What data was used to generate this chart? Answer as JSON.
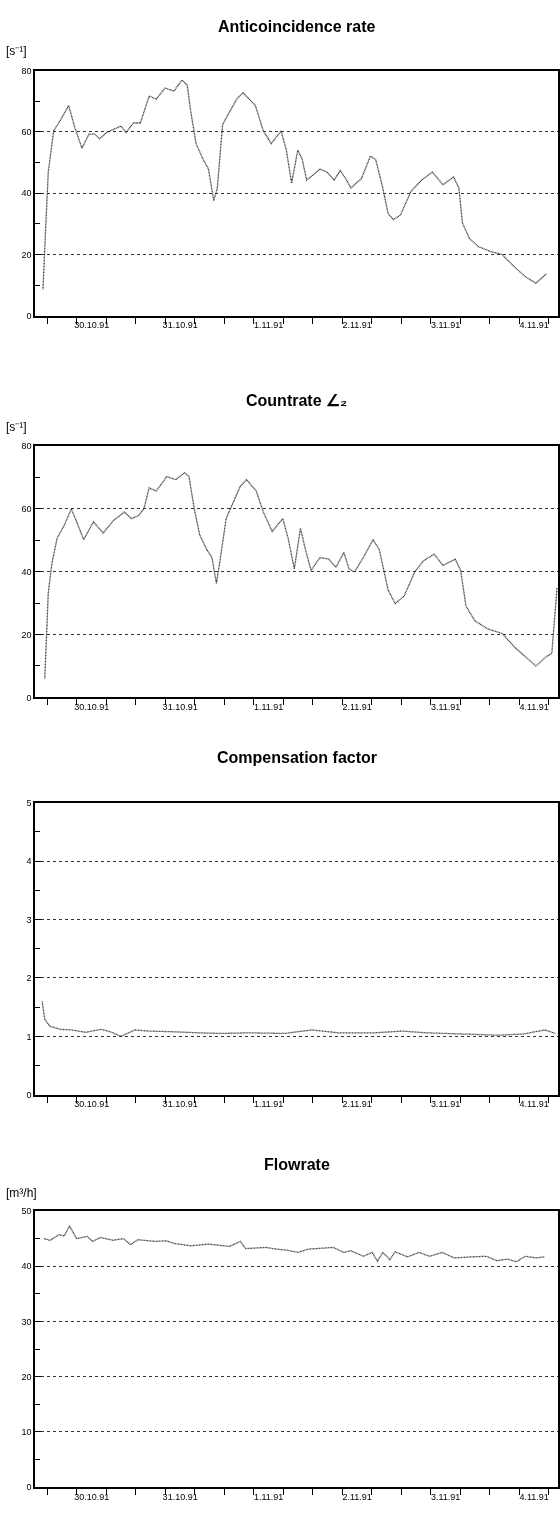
{
  "chart_data": [
    {
      "type": "line",
      "title": "Anticoincidence rate",
      "ylabel": "[s⁻¹]",
      "color": "#404040",
      "line_style": "dotted",
      "marker": "none",
      "grid": "y",
      "x": [
        "1991-10-29T22:48",
        "1991-10-29T23:31",
        "1991-10-30T00:14",
        "1991-10-30T01:41",
        "1991-10-30T03:36",
        "1991-10-30T05:46",
        "1991-10-30T07:26",
        "1991-10-30T09:22",
        "1991-10-30T11:17",
        "1991-10-30T12:43",
        "1991-10-30T14:10",
        "1991-10-30T16:05",
        "1991-10-30T19:55",
        "1991-10-30T21:22",
        "1991-10-30T23:17",
        "1991-10-31T01:12",
        "1991-10-31T03:36",
        "1991-10-31T05:31",
        "1991-10-31T07:55",
        "1991-10-31T10:19",
        "1991-10-31T12:29",
        "1991-10-31T13:55",
        "1991-10-31T14:53",
        "1991-10-31T16:19",
        "1991-10-31T18:14",
        "1991-10-31T19:41",
        "1991-10-31T21:07",
        "1991-10-31T22:05",
        "1991-10-31T23:31",
        "1991-11-01T01:26",
        "1991-11-01T03:22",
        "1991-11-01T05:02",
        "1991-11-01T06:43",
        "1991-11-01T08:24",
        "1991-11-01T10:34",
        "1991-11-01T12:43",
        "1991-11-01T15:22",
        "1991-11-01T16:48",
        "1991-11-01T18:14",
        "1991-11-01T19:55",
        "1991-11-01T21:07",
        "1991-11-01T22:19",
        "1991-11-02T00:00",
        "1991-11-02T01:55",
        "1991-11-02T03:50",
        "1991-11-02T05:46",
        "1991-11-02T07:26",
        "1991-11-02T08:53",
        "1991-11-02T10:19",
        "1991-11-02T13:12",
        "1991-11-02T15:36",
        "1991-11-02T17:02",
        "1991-11-02T18:58",
        "1991-11-02T20:24",
        "1991-11-02T21:50",
        "1991-11-02T23:46",
        "1991-11-03T02:38",
        "1991-11-03T05:31",
        "1991-11-03T08:24",
        "1991-11-03T11:17",
        "1991-11-03T14:10",
        "1991-11-03T15:36",
        "1991-11-03T16:34",
        "1991-11-03T18:29",
        "1991-11-03T20:53",
        "1991-11-04T00:14",
        "1991-11-04T03:22",
        "1991-11-04T06:43",
        "1991-11-04T09:36",
        "1991-11-04T12:29",
        "1991-11-04T15:22"
      ],
      "values": [
        8.6,
        28.3,
        46.9,
        60.3,
        64.0,
        68.6,
        61.4,
        54.7,
        59.3,
        59.3,
        57.8,
        59.8,
        61.9,
        59.8,
        62.9,
        62.9,
        71.7,
        70.7,
        74.3,
        73.3,
        76.9,
        75.3,
        66.6,
        56.2,
        51.0,
        47.9,
        37.6,
        41.7,
        62.4,
        66.6,
        70.7,
        72.8,
        70.7,
        68.6,
        60.3,
        56.2,
        60.3,
        54.1,
        43.3,
        54.1,
        51.0,
        44.3,
        45.9,
        47.9,
        46.9,
        44.3,
        47.4,
        44.8,
        41.7,
        44.8,
        52.1,
        51.0,
        41.7,
        33.4,
        31.4,
        32.9,
        40.7,
        44.3,
        46.9,
        42.8,
        45.3,
        41.7,
        30.3,
        25.2,
        22.6,
        21.0,
        20.0,
        15.9,
        12.8,
        10.7,
        13.8
      ],
      "xlim": [
        "1991-10-29T20:38",
        "1991-11-04T18:29"
      ],
      "xticks": [
        {
          "value": "1991-10-30T00:00",
          "label": null
        },
        {
          "value": "1991-10-30T08:00",
          "label": null
        },
        {
          "value": "1991-10-30T16:00",
          "label": null
        },
        {
          "value": "1991-10-31T00:00",
          "label": null
        },
        {
          "value": "1991-10-31T08:00",
          "label": null
        },
        {
          "value": "1991-10-31T16:00",
          "label": null
        },
        {
          "value": "1991-11-01T00:00",
          "label": null
        },
        {
          "value": "1991-11-01T08:00",
          "label": null
        },
        {
          "value": "1991-11-01T16:00",
          "label": null
        },
        {
          "value": "1991-11-02T00:00",
          "label": null
        },
        {
          "value": "1991-11-02T08:00",
          "label": null
        },
        {
          "value": "1991-11-02T16:00",
          "label": null
        },
        {
          "value": "1991-11-03T00:00",
          "label": null
        },
        {
          "value": "1991-11-03T08:00",
          "label": null
        },
        {
          "value": "1991-11-03T16:00",
          "label": null
        },
        {
          "value": "1991-11-04T00:00",
          "label": null
        },
        {
          "value": "1991-11-04T08:00",
          "label": null
        },
        {
          "value": "1991-11-04T16:00",
          "label": null
        },
        {
          "value": "1991-10-30T12:00",
          "label": "30.10.91"
        },
        {
          "value": "1991-10-31T12:00",
          "label": "31.10.91"
        },
        {
          "value": "1991-11-01T12:00",
          "label": "1.11.91"
        },
        {
          "value": "1991-11-02T12:00",
          "label": "2.11.91"
        },
        {
          "value": "1991-11-03T12:00",
          "label": "3.11.91"
        },
        {
          "value": "1991-11-04T12:00",
          "label": "4.11.91"
        }
      ],
      "ylim": [
        0,
        80
      ],
      "yticks": [
        0,
        20,
        40,
        60,
        80,
        {
          "value": 10,
          "label": null
        },
        {
          "value": 30,
          "label": null
        },
        {
          "value": 50,
          "label": null
        },
        {
          "value": 70,
          "label": null
        }
      ]
    },
    {
      "type": "line",
      "title": "Countrate ∠₂",
      "ylabel": "[s⁻¹]",
      "color": "#404040",
      "line_style": "dotted",
      "marker": "none",
      "grid": "y",
      "x": [
        "1991-10-29T23:17",
        "1991-10-30T00:14",
        "1991-10-30T01:12",
        "1991-10-30T02:38",
        "1991-10-30T04:34",
        "1991-10-30T06:29",
        "1991-10-30T07:55",
        "1991-10-30T09:50",
        "1991-10-30T12:29",
        "1991-10-30T15:07",
        "1991-10-30T18:00",
        "1991-10-30T20:53",
        "1991-10-30T22:48",
        "1991-10-31T00:43",
        "1991-10-31T02:10",
        "1991-10-31T03:36",
        "1991-10-31T05:31",
        "1991-10-31T08:24",
        "1991-10-31T10:48",
        "1991-10-31T13:12",
        "1991-10-31T14:24",
        "1991-10-31T15:50",
        "1991-10-31T17:17",
        "1991-10-31T19:12",
        "1991-10-31T20:38",
        "1991-10-31T21:50",
        "1991-10-31T22:48",
        "1991-11-01T00:29",
        "1991-11-01T02:24",
        "1991-11-01T04:19",
        "1991-11-01T06:00",
        "1991-11-01T08:38",
        "1991-11-01T10:34",
        "1991-11-01T12:58",
        "1991-11-01T15:50",
        "1991-11-01T17:17",
        "1991-11-01T18:58",
        "1991-11-01T20:38",
        "1991-11-01T22:05",
        "1991-11-01T23:31",
        "1991-11-02T01:55",
        "1991-11-02T04:19",
        "1991-11-02T06:14",
        "1991-11-02T08:24",
        "1991-11-02T09:50",
        "1991-11-02T11:17",
        "1991-11-02T13:41",
        "1991-11-02T16:19",
        "1991-11-02T18:00",
        "1991-11-02T20:24",
        "1991-11-02T22:19",
        "1991-11-03T00:43",
        "1991-11-03T03:36",
        "1991-11-03T06:00",
        "1991-11-03T08:53",
        "1991-11-03T11:17",
        "1991-11-03T14:38",
        "1991-11-03T16:05",
        "1991-11-03T17:31",
        "1991-11-03T19:55",
        "1991-11-03T23:17",
        "1991-11-04T03:22",
        "1991-11-04T06:43",
        "1991-11-04T09:36",
        "1991-11-04T12:29",
        "1991-11-04T15:22",
        "1991-11-04T16:48",
        "1991-11-04T18:14"
      ],
      "values": [
        6,
        33.2,
        42.5,
        50.7,
        54.8,
        60.0,
        55.9,
        50.2,
        55.9,
        52.3,
        56.4,
        59.0,
        56.9,
        57.9,
        60.0,
        66.7,
        65.7,
        70.3,
        69.3,
        71.5,
        70.3,
        60.0,
        51.8,
        47.1,
        44.5,
        36.3,
        43.5,
        56.9,
        62.1,
        67.2,
        69.3,
        65.7,
        59.0,
        52.8,
        56.9,
        50.7,
        40.9,
        53.8,
        46.6,
        40.4,
        44.5,
        44.0,
        41.4,
        46.1,
        40.9,
        39.9,
        44.5,
        50.2,
        47.1,
        34.2,
        29.9,
        32.2,
        39.9,
        43.5,
        45.6,
        42.0,
        44.0,
        40.4,
        29.1,
        24.4,
        21.9,
        20.3,
        16,
        13,
        10,
        13,
        14,
        35
      ],
      "xlim": [
        "1991-10-29T20:38",
        "1991-11-04T18:29"
      ],
      "xticks": [
        {
          "value": "1991-10-30T00:00",
          "label": null
        },
        {
          "value": "1991-10-30T08:00",
          "label": null
        },
        {
          "value": "1991-10-30T16:00",
          "label": null
        },
        {
          "value": "1991-10-31T00:00",
          "label": null
        },
        {
          "value": "1991-10-31T08:00",
          "label": null
        },
        {
          "value": "1991-10-31T16:00",
          "label": null
        },
        {
          "value": "1991-11-01T00:00",
          "label": null
        },
        {
          "value": "1991-11-01T08:00",
          "label": null
        },
        {
          "value": "1991-11-01T16:00",
          "label": null
        },
        {
          "value": "1991-11-02T00:00",
          "label": null
        },
        {
          "value": "1991-11-02T08:00",
          "label": null
        },
        {
          "value": "1991-11-02T16:00",
          "label": null
        },
        {
          "value": "1991-11-03T00:00",
          "label": null
        },
        {
          "value": "1991-11-03T08:00",
          "label": null
        },
        {
          "value": "1991-11-03T16:00",
          "label": null
        },
        {
          "value": "1991-11-04T00:00",
          "label": null
        },
        {
          "value": "1991-11-04T08:00",
          "label": null
        },
        {
          "value": "1991-11-04T16:00",
          "label": null
        },
        {
          "value": "1991-10-30T12:00",
          "label": "30.10.91"
        },
        {
          "value": "1991-10-31T12:00",
          "label": "31.10.91"
        },
        {
          "value": "1991-11-01T12:00",
          "label": "1.11.91"
        },
        {
          "value": "1991-11-02T12:00",
          "label": "2.11.91"
        },
        {
          "value": "1991-11-03T12:00",
          "label": "3.11.91"
        },
        {
          "value": "1991-11-04T12:00",
          "label": "4.11.91"
        }
      ],
      "ylim": [
        0,
        80
      ],
      "yticks": [
        0,
        20,
        40,
        60,
        80,
        {
          "value": 10,
          "label": null
        },
        {
          "value": 30,
          "label": null
        },
        {
          "value": 50,
          "label": null
        },
        {
          "value": 70,
          "label": null
        }
      ]
    },
    {
      "type": "line",
      "title": "Compensation factor",
      "color": "#404040",
      "line_style": "dotted",
      "marker": "none",
      "grid": "y",
      "x": [
        "1991-10-29T22:34",
        "1991-10-29T23:17",
        "1991-10-30T00:43",
        "1991-10-30T03:36",
        "1991-10-30T06:29",
        "1991-10-30T10:19",
        "1991-10-30T14:38",
        "1991-10-30T17:02",
        "1991-10-30T19:55",
        "1991-10-30T23:46",
        "1991-10-31T03:36",
        "1991-10-31T09:36",
        "1991-10-31T17:17",
        "1991-10-31T23:02",
        "1991-11-01T06:43",
        "1991-11-01T16:19",
        "1991-11-01T23:46",
        "1991-11-02T06:58",
        "1991-11-02T16:34",
        "1991-11-03T00:14",
        "1991-11-03T06:58",
        "1991-11-03T16:34",
        "1991-11-04T02:24",
        "1991-11-04T09:07",
        "1991-11-04T14:53",
        "1991-11-04T17:46"
      ],
      "values": [
        1.6,
        1.29,
        1.17,
        1.12,
        1.11,
        1.07,
        1.12,
        1.08,
        1.0,
        1.11,
        1.09,
        1.08,
        1.06,
        1.05,
        1.06,
        1.05,
        1.11,
        1.06,
        1.06,
        1.09,
        1.06,
        1.04,
        1.02,
        1.04,
        1.11,
        1.05
      ],
      "xlim": [
        "1991-10-29T20:38",
        "1991-11-04T18:29"
      ],
      "xticks": [
        {
          "value": "1991-10-30T00:00",
          "label": null
        },
        {
          "value": "1991-10-30T08:00",
          "label": null
        },
        {
          "value": "1991-10-30T16:00",
          "label": null
        },
        {
          "value": "1991-10-31T00:00",
          "label": null
        },
        {
          "value": "1991-10-31T08:00",
          "label": null
        },
        {
          "value": "1991-10-31T16:00",
          "label": null
        },
        {
          "value": "1991-11-01T00:00",
          "label": null
        },
        {
          "value": "1991-11-01T08:00",
          "label": null
        },
        {
          "value": "1991-11-01T16:00",
          "label": null
        },
        {
          "value": "1991-11-02T00:00",
          "label": null
        },
        {
          "value": "1991-11-02T08:00",
          "label": null
        },
        {
          "value": "1991-11-02T16:00",
          "label": null
        },
        {
          "value": "1991-11-03T00:00",
          "label": null
        },
        {
          "value": "1991-11-03T08:00",
          "label": null
        },
        {
          "value": "1991-11-03T16:00",
          "label": null
        },
        {
          "value": "1991-11-04T00:00",
          "label": null
        },
        {
          "value": "1991-11-04T08:00",
          "label": null
        },
        {
          "value": "1991-11-04T16:00",
          "label": null
        },
        {
          "value": "1991-10-30T12:00",
          "label": "30.10.91"
        },
        {
          "value": "1991-10-31T12:00",
          "label": "31.10.91"
        },
        {
          "value": "1991-11-01T12:00",
          "label": "1.11.91"
        },
        {
          "value": "1991-11-02T12:00",
          "label": "2.11.91"
        },
        {
          "value": "1991-11-03T12:00",
          "label": "3.11.91"
        },
        {
          "value": "1991-11-04T12:00",
          "label": "4.11.91"
        }
      ],
      "ylim": [
        0,
        5
      ],
      "yticks": [
        0,
        1,
        2,
        3,
        4,
        5,
        {
          "value": 0.5,
          "label": null
        },
        {
          "value": 1.5,
          "label": null
        },
        {
          "value": 2.5,
          "label": null
        },
        {
          "value": 3.5,
          "label": null
        },
        {
          "value": 4.5,
          "label": null
        }
      ]
    },
    {
      "type": "line",
      "title": "Flowrate",
      "ylabel": "[m³/h]",
      "color": "#404040",
      "line_style": "dotted",
      "marker": "none",
      "grid": "y",
      "x": [
        "1991-10-29T23:02",
        "1991-10-30T00:43",
        "1991-10-30T03:07",
        "1991-10-30T04:34",
        "1991-10-30T06:00",
        "1991-10-30T07:55",
        "1991-10-30T10:48",
        "1991-10-30T12:14",
        "1991-10-30T14:24",
        "1991-10-30T17:46",
        "1991-10-30T20:38",
        "1991-10-30T22:34",
        "1991-10-31T00:29",
        "1991-10-31T05:17",
        "1991-10-31T08:10",
        "1991-10-31T10:34",
        "1991-10-31T14:53",
        "1991-10-31T19:41",
        "1991-11-01T01:26",
        "1991-11-01T04:19",
        "1991-11-01T05:46",
        "1991-11-01T11:17",
        "1991-11-01T14:10",
        "1991-11-01T17:02",
        "1991-11-01T19:55",
        "1991-11-01T22:48",
        "1991-11-02T05:31",
        "1991-11-02T08:24",
        "1991-11-02T10:19",
        "1991-11-02T13:41",
        "1991-11-02T16:05",
        "1991-11-02T17:31",
        "1991-11-02T18:58",
        "1991-11-02T20:53",
        "1991-11-02T22:19",
        "1991-11-03T01:41",
        "1991-11-03T04:48",
        "1991-11-03T07:41",
        "1991-11-03T11:02",
        "1991-11-03T14:24",
        "1991-11-03T19:12",
        "1991-11-03T23:02",
        "1991-11-04T01:55",
        "1991-11-04T04:48",
        "1991-11-04T07:12",
        "1991-11-04T09:36",
        "1991-11-04T12:29",
        "1991-11-04T14:53"
      ],
      "values": [
        45.0,
        44.7,
        45.7,
        45.5,
        47.3,
        45.0,
        45.4,
        44.5,
        45.2,
        44.7,
        45.0,
        43.9,
        44.8,
        44.5,
        44.6,
        44.1,
        43.7,
        44.0,
        43.6,
        44.5,
        43.2,
        43.4,
        43.1,
        42.9,
        42.5,
        43.1,
        43.4,
        42.5,
        42.8,
        41.8,
        42.5,
        40.9,
        42.5,
        41.2,
        42.6,
        41.7,
        42.5,
        41.8,
        42.5,
        41.5,
        41.7,
        41.8,
        41.0,
        41.3,
        40.8,
        41.8,
        41.5,
        41.7
      ],
      "xlim": [
        "1991-10-29T20:38",
        "1991-11-04T18:29"
      ],
      "xticks": [
        {
          "value": "1991-10-30T00:00",
          "label": null
        },
        {
          "value": "1991-10-30T08:00",
          "label": null
        },
        {
          "value": "1991-10-30T16:00",
          "label": null
        },
        {
          "value": "1991-10-31T00:00",
          "label": null
        },
        {
          "value": "1991-10-31T08:00",
          "label": null
        },
        {
          "value": "1991-10-31T16:00",
          "label": null
        },
        {
          "value": "1991-11-01T00:00",
          "label": null
        },
        {
          "value": "1991-11-01T08:00",
          "label": null
        },
        {
          "value": "1991-11-01T16:00",
          "label": null
        },
        {
          "value": "1991-11-02T00:00",
          "label": null
        },
        {
          "value": "1991-11-02T08:00",
          "label": null
        },
        {
          "value": "1991-11-02T16:00",
          "label": null
        },
        {
          "value": "1991-11-03T00:00",
          "label": null
        },
        {
          "value": "1991-11-03T08:00",
          "label": null
        },
        {
          "value": "1991-11-03T16:00",
          "label": null
        },
        {
          "value": "1991-11-04T00:00",
          "label": null
        },
        {
          "value": "1991-11-04T08:00",
          "label": null
        },
        {
          "value": "1991-11-04T16:00",
          "label": null
        },
        {
          "value": "1991-10-30T12:00",
          "label": "30.10.91"
        },
        {
          "value": "1991-10-31T12:00",
          "label": "31.10.91"
        },
        {
          "value": "1991-11-01T12:00",
          "label": "1.11.91"
        },
        {
          "value": "1991-11-02T12:00",
          "label": "2.11.91"
        },
        {
          "value": "1991-11-03T12:00",
          "label": "3.11.91"
        },
        {
          "value": "1991-11-04T12:00",
          "label": "4.11.91"
        }
      ],
      "ylim": [
        0,
        50
      ],
      "yticks": [
        0,
        10,
        20,
        30,
        40,
        50,
        {
          "value": 5,
          "label": null
        },
        {
          "value": 15,
          "label": null
        },
        {
          "value": 25,
          "label": null
        },
        {
          "value": 35,
          "label": null
        },
        {
          "value": 45,
          "label": null
        }
      ]
    }
  ]
}
